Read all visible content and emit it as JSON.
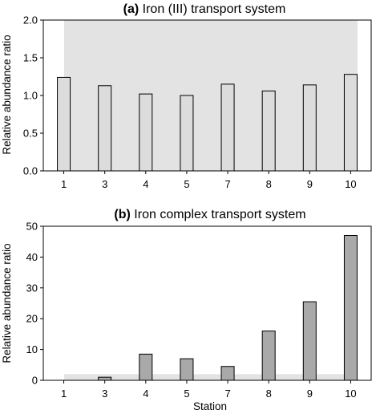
{
  "chart_data": [
    {
      "type": "bar",
      "title_tag": "(a)",
      "title": "Iron (III) transport system",
      "xlabel": "",
      "ylabel": "Relative abundance ratio",
      "categories": [
        "1",
        "3",
        "4",
        "5",
        "7",
        "8",
        "9",
        "10"
      ],
      "values": [
        1.24,
        1.13,
        1.02,
        1.0,
        1.15,
        1.06,
        1.14,
        1.28
      ],
      "ylim": [
        0,
        2.0
      ],
      "yticks": [
        "0.0",
        "0.5",
        "1.0",
        "1.5",
        "2.0"
      ],
      "shaded_band": [
        0,
        2.0
      ],
      "colors": {
        "bar_fill": "#dcdcdc",
        "bar_stroke": "#000000",
        "band": "#e3e3e3"
      }
    },
    {
      "type": "bar",
      "title_tag": "(b)",
      "title": "Iron complex transport system",
      "xlabel": "Station",
      "ylabel": "Relative abundance ratio",
      "categories": [
        "1",
        "3",
        "4",
        "5",
        "7",
        "8",
        "9",
        "10"
      ],
      "values": [
        0,
        1.0,
        8.5,
        7.0,
        4.5,
        16.0,
        25.5,
        47.0
      ],
      "ylim": [
        0,
        50
      ],
      "yticks": [
        "0",
        "10",
        "20",
        "30",
        "40",
        "50"
      ],
      "shaded_band": [
        0,
        2.0
      ],
      "colors": {
        "bar_fill": "#a9a9a9",
        "bar_stroke": "#000000",
        "band": "#e3e3e3"
      }
    }
  ]
}
